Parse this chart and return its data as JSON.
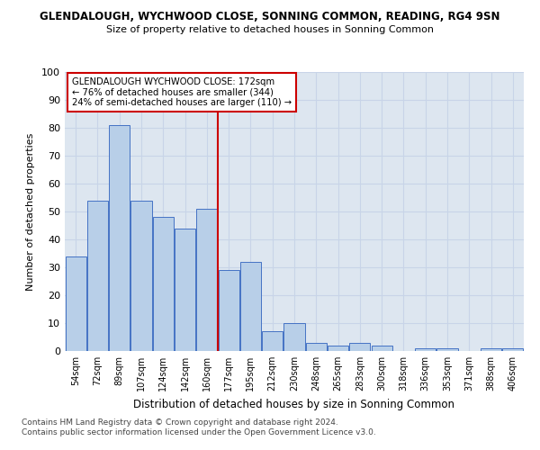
{
  "title": "GLENDALOUGH, WYCHWOOD CLOSE, SONNING COMMON, READING, RG4 9SN",
  "subtitle": "Size of property relative to detached houses in Sonning Common",
  "xlabel": "Distribution of detached houses by size in Sonning Common",
  "ylabel": "Number of detached properties",
  "categories": [
    "54sqm",
    "72sqm",
    "89sqm",
    "107sqm",
    "124sqm",
    "142sqm",
    "160sqm",
    "177sqm",
    "195sqm",
    "212sqm",
    "230sqm",
    "248sqm",
    "265sqm",
    "283sqm",
    "300sqm",
    "318sqm",
    "336sqm",
    "353sqm",
    "371sqm",
    "388sqm",
    "406sqm"
  ],
  "values": [
    34,
    54,
    81,
    54,
    48,
    44,
    51,
    29,
    32,
    7,
    10,
    3,
    2,
    3,
    2,
    0,
    1,
    1,
    0,
    1,
    1
  ],
  "bar_color": "#b8cfe8",
  "bar_edge_color": "#4472c4",
  "vline_x_index": 6.5,
  "vline_color": "#cc0000",
  "annotation_line1": "GLENDALOUGH WYCHWOOD CLOSE: 172sqm",
  "annotation_line2": "← 76% of detached houses are smaller (344)",
  "annotation_line3": "24% of semi-detached houses are larger (110) →",
  "annotation_box_color": "#cc0000",
  "ylim": [
    0,
    100
  ],
  "yticks": [
    0,
    10,
    20,
    30,
    40,
    50,
    60,
    70,
    80,
    90,
    100
  ],
  "grid_color": "#c8d4e8",
  "background_color": "#dde6f0",
  "footnote1": "Contains HM Land Registry data © Crown copyright and database right 2024.",
  "footnote2": "Contains public sector information licensed under the Open Government Licence v3.0."
}
